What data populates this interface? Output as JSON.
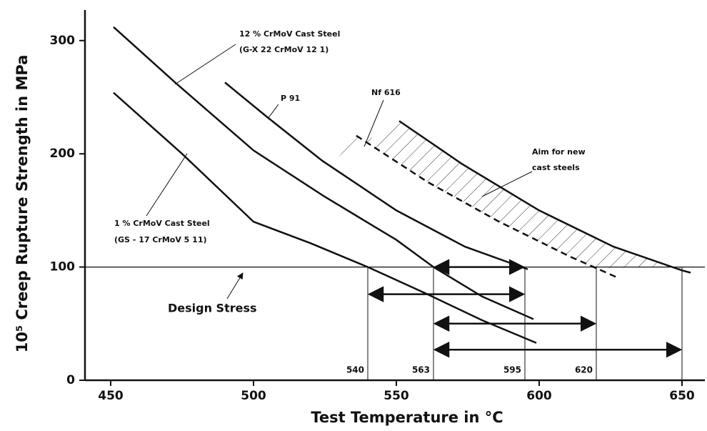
{
  "chart_data": {
    "type": "line",
    "xlabel": "Test Temperature in °C",
    "ylabel": "10⁵ Creep Rupture Strength in MPa",
    "xlim": [
      441,
      658
    ],
    "ylim": [
      0,
      327
    ],
    "xticks": [
      450,
      500,
      550,
      600,
      650
    ],
    "yticks": [
      0,
      100,
      200,
      300
    ],
    "color": "#111111",
    "series": [
      {
        "label": [
          "1 % CrMoV Cast Steel",
          "(GS - 17 CrMoV 5 11)"
        ],
        "x": [
          451,
          475,
          500,
          520,
          540,
          560,
          580,
          599
        ],
        "values": [
          254,
          200,
          140,
          121,
          100,
          77,
          53,
          33
        ],
        "dashed": false
      },
      {
        "label": [
          "12 % CrMoV Cast Steel",
          "(G-X 22 CrMoV 12 1)"
        ],
        "x": [
          451,
          473,
          500,
          525,
          550,
          563,
          580,
          598
        ],
        "values": [
          312,
          262,
          203,
          162,
          124,
          100,
          74,
          54
        ],
        "dashed": false
      },
      {
        "label": [
          "P 91"
        ],
        "x": [
          490,
          505,
          524,
          550,
          574,
          596
        ],
        "values": [
          263,
          232,
          194,
          150,
          118,
          98
        ],
        "dashed": false
      },
      {
        "label": [
          "Nf 616"
        ],
        "x": [
          536,
          561,
          586,
          611,
          620,
          628
        ],
        "values": [
          216,
          175,
          140,
          109,
          99,
          90
        ],
        "dashed": true
      },
      {
        "label": [
          "Aim for new",
          "cast steels"
        ],
        "x": [
          551,
          573,
          600,
          626,
          650,
          653
        ],
        "values": [
          229,
          191,
          150,
          118,
          97,
          95
        ],
        "dashed": false
      }
    ],
    "design_stress": {
      "value": 100,
      "label": "Design Stress"
    },
    "marked_temperatures": [
      540,
      563,
      595,
      620
    ],
    "arrows": [
      {
        "from": 563,
        "to": 595,
        "stress": 100
      },
      {
        "from": 540,
        "to": 595,
        "stress": 76
      },
      {
        "from": 563,
        "to": 620,
        "stress": 50
      },
      {
        "from": 563,
        "to": 650,
        "stress": 27
      }
    ]
  }
}
